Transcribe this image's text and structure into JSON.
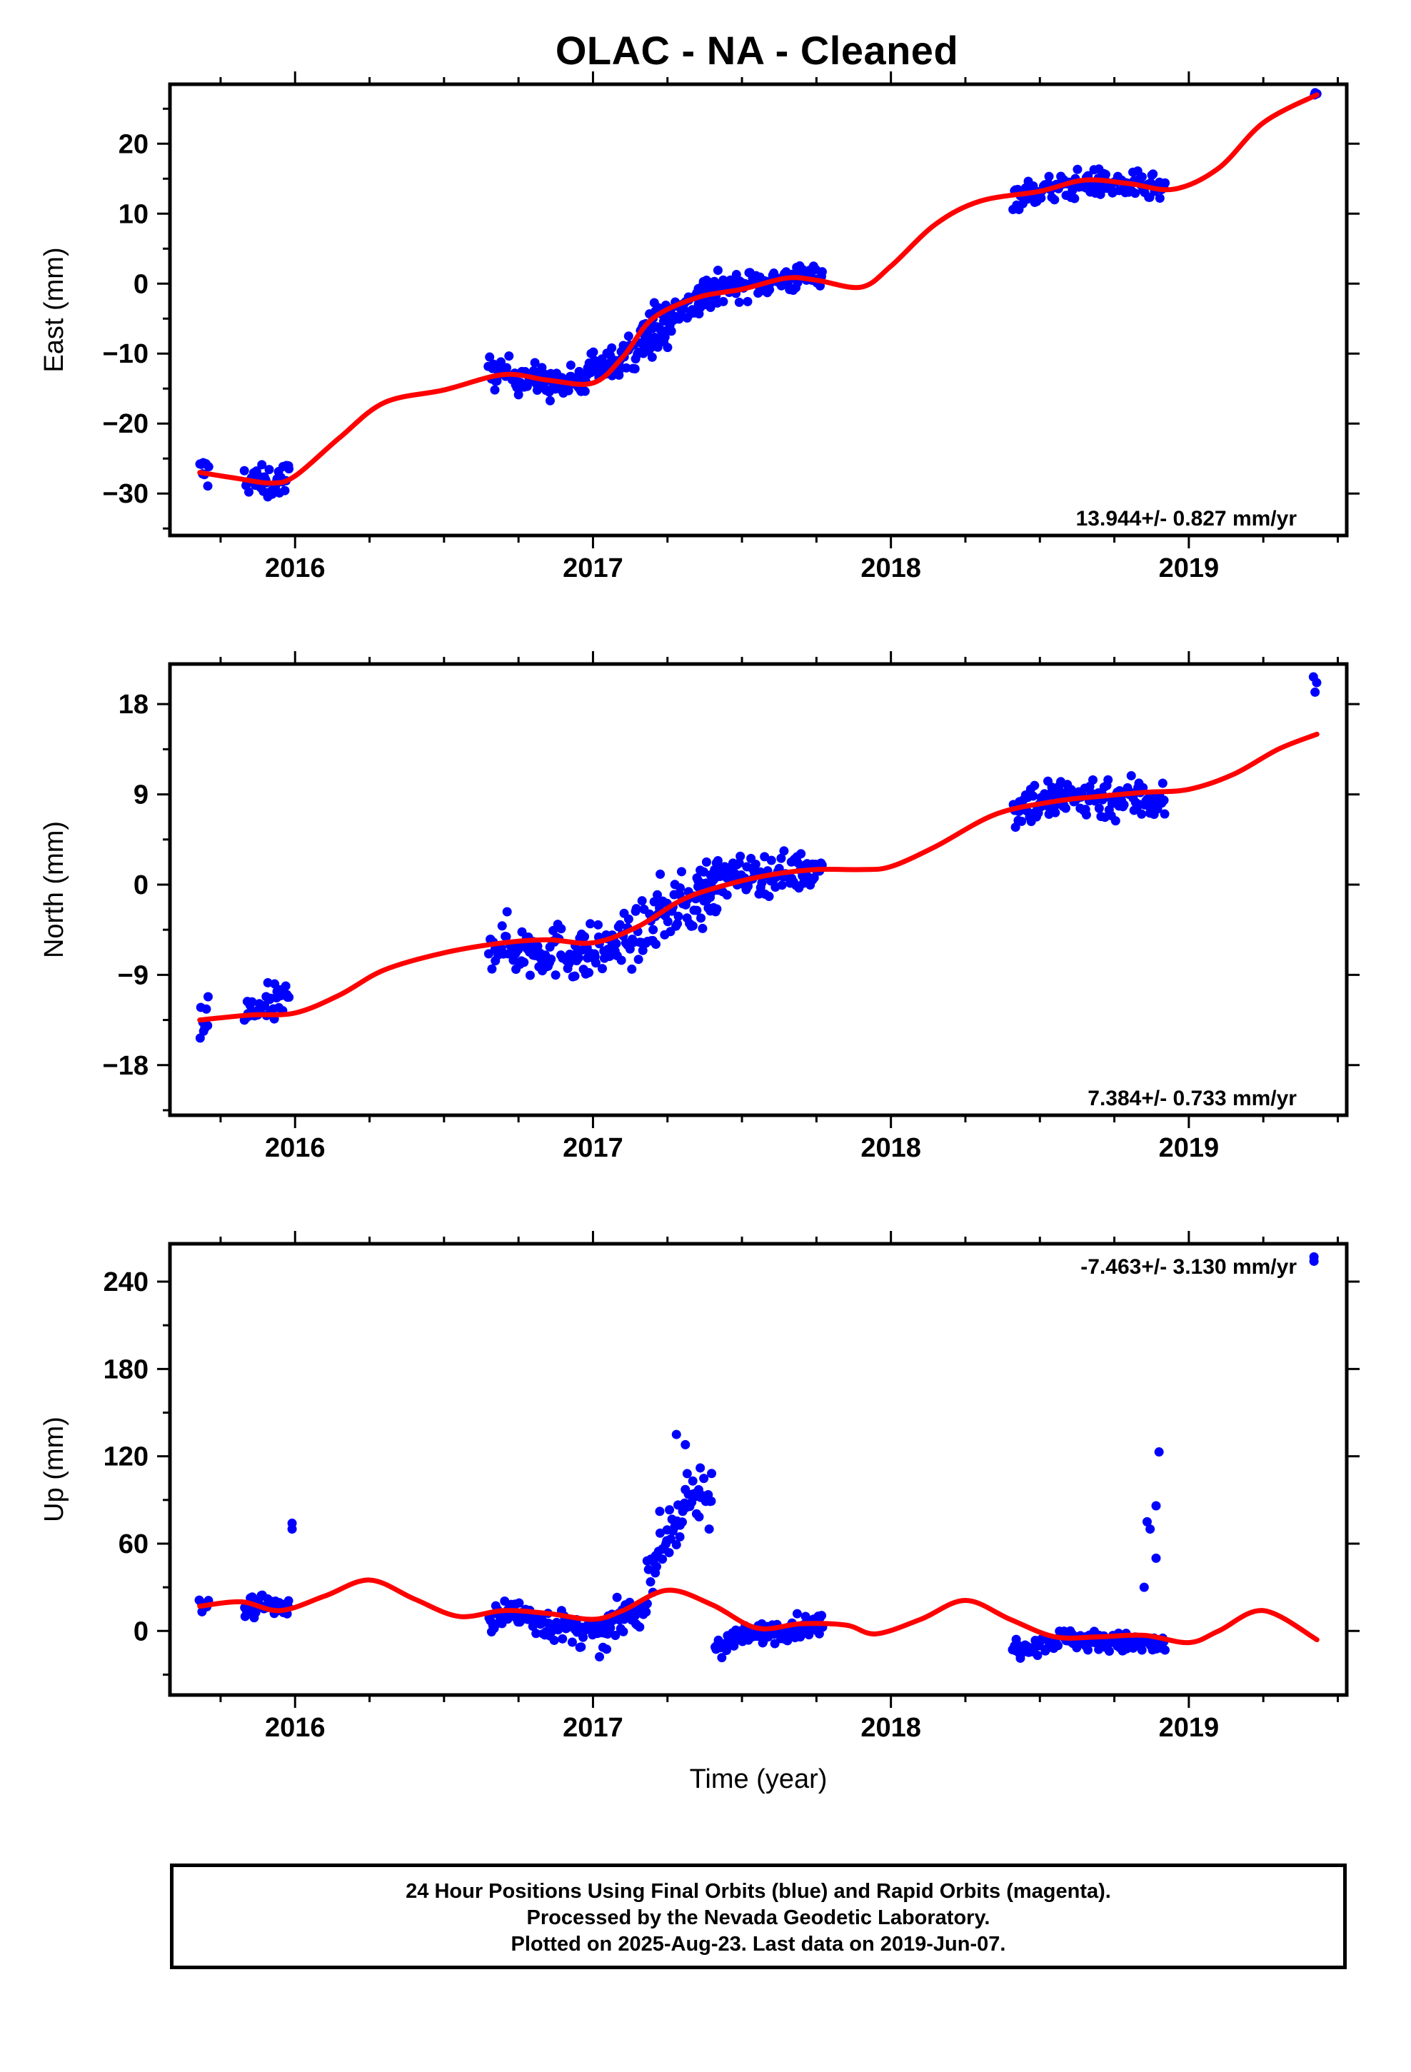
{
  "title": "OLAC  - NA - Cleaned",
  "colors": {
    "final_orbit_points": "#0000ff",
    "model_curve": "#ff0000",
    "axes": "#000000"
  },
  "footer": {
    "line1": "24 Hour Positions Using Final Orbits (blue) and Rapid Orbits (magenta).",
    "line2": "Processed by the Nevada Geodetic Laboratory.",
    "line3": "Plotted on 2025-Aug-23. Last data on 2019-Jun-07."
  },
  "chart_data": [
    {
      "type": "scatter",
      "component": "east",
      "title": "OLAC  - NA - Cleaned",
      "xlabel": "",
      "ylabel": "East (mm)",
      "xlim": [
        2015.58,
        2019.53
      ],
      "ylim": [
        -36,
        28.5
      ],
      "xticks": [
        2016,
        2017,
        2018,
        2019
      ],
      "yticks": [
        -30,
        -20,
        -10,
        0,
        10,
        20
      ],
      "rate_label": "13.944+/- 0.827 mm/yr",
      "rate_position": "bottom-right",
      "data_segments": [
        {
          "x": [
            2015.68,
            2015.71
          ],
          "center": [
            -27,
            -27
          ],
          "spread": 3
        },
        {
          "x": [
            2015.83,
            2015.98
          ],
          "center": [
            -27.8,
            -28.7,
            -27.6
          ],
          "spread": 3
        },
        {
          "x": [
            2016.65,
            2016.98
          ],
          "center": [
            -12.5,
            -13.3,
            -14.5,
            -14.2
          ],
          "spread": 3
        },
        {
          "x": [
            2016.98,
            2017.25
          ],
          "center": [
            -12,
            -8
          ],
          "spread": 3
        },
        {
          "x": [
            2017.16,
            2017.42
          ],
          "center": [
            -6,
            -1.5
          ],
          "spread": 3
        },
        {
          "x": [
            2017.35,
            2017.77
          ],
          "center": [
            -1,
            1.2
          ],
          "spread": 2.5
        },
        {
          "x": [
            2018.41,
            2018.92
          ],
          "center": [
            12.5,
            14.5,
            13.5
          ],
          "spread": 2.5
        },
        {
          "x": [
            2019.42,
            2019.43
          ],
          "center": [
            27,
            27
          ],
          "spread": 0.3
        }
      ],
      "model_curve": {
        "x": [
          2015.68,
          2015.8,
          2015.92,
          2016.0,
          2016.15,
          2016.3,
          2016.5,
          2016.7,
          2016.85,
          2017.0,
          2017.1,
          2017.2,
          2017.35,
          2017.5,
          2017.65,
          2017.75,
          2017.9,
          2018.0,
          2018.15,
          2018.3,
          2018.5,
          2018.65,
          2018.8,
          2018.95,
          2019.1,
          2019.25,
          2019.43
        ],
        "y": [
          -27,
          -27.8,
          -28.5,
          -27.5,
          -22,
          -17,
          -15.2,
          -13,
          -13.8,
          -14.2,
          -10.5,
          -5,
          -2,
          -0.8,
          0.8,
          0.5,
          -0.5,
          2.5,
          8.5,
          11.8,
          13.2,
          14.8,
          14.3,
          13.5,
          16.5,
          23,
          27
        ]
      }
    },
    {
      "type": "scatter",
      "component": "north",
      "xlabel": "",
      "ylabel": "North (mm)",
      "xlim": [
        2015.58,
        2019.53
      ],
      "ylim": [
        -23,
        22
      ],
      "xticks": [
        2016,
        2017,
        2018,
        2019
      ],
      "yticks": [
        -18,
        -9,
        0,
        9,
        18
      ],
      "rate_label": "7.384+/- 0.733 mm/yr",
      "rate_position": "bottom-right",
      "data_segments": [
        {
          "x": [
            2015.68,
            2015.71
          ],
          "center": [
            -13.5,
            -13.5
          ],
          "spread": 4
        },
        {
          "x": [
            2015.83,
            2015.98
          ],
          "center": [
            -13,
            -12.2,
            -11.5
          ],
          "spread": 2.5
        },
        {
          "x": [
            2016.65,
            2016.98
          ],
          "center": [
            -5.5,
            -6.5,
            -6.5,
            -7
          ],
          "spread": 3.5
        },
        {
          "x": [
            2016.98,
            2017.2
          ],
          "center": [
            -7,
            -4.5
          ],
          "spread": 3.5
        },
        {
          "x": [
            2017.2,
            2017.42
          ],
          "center": [
            -3,
            -1
          ],
          "spread": 4
        },
        {
          "x": [
            2017.35,
            2017.77
          ],
          "center": [
            0.5,
            1.5
          ],
          "spread": 2.5
        },
        {
          "x": [
            2018.41,
            2018.92
          ],
          "center": [
            8,
            8.8,
            8.5
          ],
          "spread": 3
        },
        {
          "x": [
            2019.42,
            2019.43
          ],
          "center": [
            19.5,
            19.5
          ],
          "spread": 2
        }
      ],
      "model_curve": {
        "x": [
          2015.68,
          2015.85,
          2016.0,
          2016.15,
          2016.3,
          2016.5,
          2016.7,
          2016.85,
          2017.0,
          2017.15,
          2017.3,
          2017.45,
          2017.6,
          2017.75,
          2017.9,
          2018.0,
          2018.15,
          2018.35,
          2018.55,
          2018.7,
          2018.85,
          2019.0,
          2019.15,
          2019.3,
          2019.43
        ],
        "y": [
          -13.5,
          -13,
          -12.8,
          -11,
          -8.5,
          -6.8,
          -5.8,
          -5.5,
          -5.8,
          -4.2,
          -1.5,
          0,
          1,
          1.5,
          1.5,
          1.8,
          3.8,
          7,
          8.3,
          8.8,
          9.2,
          9.5,
          11,
          13.5,
          15
        ]
      }
    },
    {
      "type": "scatter",
      "component": "up",
      "xlabel": "Time (year)",
      "ylabel": "Up (mm)",
      "xlim": [
        2015.58,
        2019.53
      ],
      "ylim": [
        -44,
        266
      ],
      "xticks": [
        2016,
        2017,
        2018,
        2019
      ],
      "yticks": [
        0,
        60,
        120,
        180,
        240
      ],
      "rate_label": "-7.463+/- 3.130 mm/yr",
      "rate_position": "top-right",
      "data_segments": [
        {
          "x": [
            2015.68,
            2015.71
          ],
          "center": [
            18,
            18
          ],
          "spread": 8
        },
        {
          "x": [
            2015.83,
            2015.98
          ],
          "center": [
            15,
            20,
            12
          ],
          "spread": 10
        },
        {
          "x": [
            2016.65,
            2017.05
          ],
          "center": [
            10,
            12,
            5,
            0,
            -5
          ],
          "spread": 14
        },
        {
          "x": [
            2017.05,
            2017.18
          ],
          "center": [
            5,
            15
          ],
          "spread": 14
        },
        {
          "x": [
            2017.18,
            2017.4
          ],
          "center": [
            40,
            80,
            95
          ],
          "spread": 25
        },
        {
          "x": [
            2017.41,
            2017.77
          ],
          "center": [
            -10,
            0,
            5
          ],
          "spread": 10
        },
        {
          "x": [
            2018.41,
            2018.92
          ],
          "center": [
            -12,
            -5,
            -8,
            -10
          ],
          "spread": 9
        }
      ],
      "extra_points": [
        {
          "x": 2015.99,
          "y": 74
        },
        {
          "x": 2015.99,
          "y": 70
        },
        {
          "x": 2017.28,
          "y": 135
        },
        {
          "x": 2017.31,
          "y": 128
        },
        {
          "x": 2017.36,
          "y": 112
        },
        {
          "x": 2017.39,
          "y": 70
        },
        {
          "x": 2018.86,
          "y": 75
        },
        {
          "x": 2018.87,
          "y": 70
        },
        {
          "x": 2018.89,
          "y": 86
        },
        {
          "x": 2018.9,
          "y": 123
        },
        {
          "x": 2018.89,
          "y": 50
        },
        {
          "x": 2018.85,
          "y": 30
        },
        {
          "x": 2019.42,
          "y": 257
        },
        {
          "x": 2019.42,
          "y": 254
        }
      ],
      "model_curve": {
        "x": [
          2015.68,
          2015.82,
          2015.95,
          2016.1,
          2016.25,
          2016.4,
          2016.55,
          2016.7,
          2016.85,
          2017.0,
          2017.1,
          2017.25,
          2017.4,
          2017.55,
          2017.7,
          2017.85,
          2017.95,
          2018.1,
          2018.25,
          2018.4,
          2018.55,
          2018.7,
          2018.85,
          2019.0,
          2019.1,
          2019.25,
          2019.43
        ],
        "y": [
          17,
          20,
          14,
          24,
          35,
          22,
          10,
          14,
          12,
          8,
          14,
          28,
          18,
          2,
          5,
          4,
          -2,
          8,
          21,
          8,
          -4,
          -4,
          -3,
          -8,
          0,
          14,
          -6
        ]
      }
    }
  ]
}
